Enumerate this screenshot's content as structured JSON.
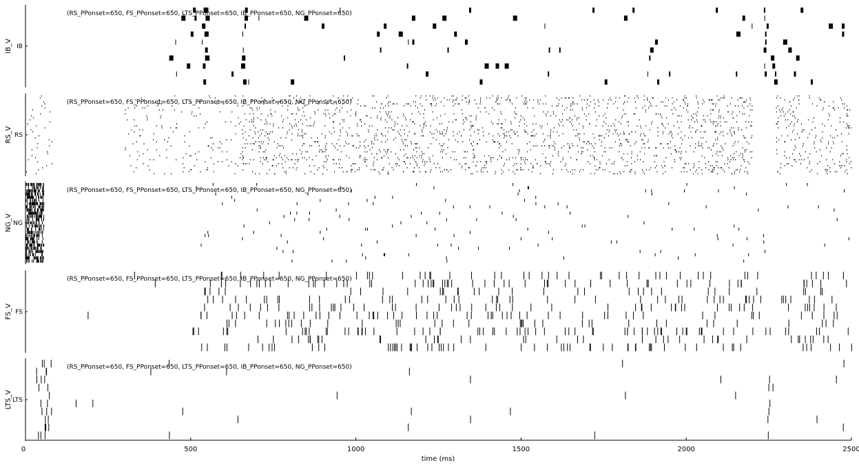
{
  "chart_data": {
    "type": "raster",
    "panel_title": "(RS_PPonset=650, FS_PPonset=650, LTS_PPonset=650, IB_PPonset=650, NG_PPonset=650)",
    "xlabel": "time (ms)",
    "xlim": [
      0,
      2500
    ],
    "xticks": [
      "0",
      "500",
      "1000",
      "1500",
      "2000",
      "2500"
    ],
    "grid": false,
    "panels": [
      {
        "id": "IB",
        "ylabel": "IB_V",
        "ytick": "IB",
        "n_neurons": 10,
        "spike_style": "bursts",
        "activity": [
          {
            "t_start": 390,
            "t_end": 700,
            "rate_hz": 5
          },
          {
            "t_start": 700,
            "t_end": 2500,
            "rate_hz": 3
          }
        ],
        "volley_times": [
          540,
          660,
          2240
        ]
      },
      {
        "id": "RS",
        "ylabel": "RS_V",
        "ytick": "RS",
        "n_neurons": 40,
        "spike_style": "dots",
        "activity": [
          {
            "t_start": 0,
            "t_end": 80,
            "rate_hz": 10
          },
          {
            "t_start": 300,
            "t_end": 650,
            "rate_hz": 12
          },
          {
            "t_start": 650,
            "t_end": 2200,
            "rate_hz": 30
          },
          {
            "t_start": 2270,
            "t_end": 2500,
            "rate_hz": 25
          }
        ]
      },
      {
        "id": "NG",
        "ylabel": "NG_V",
        "ytick": "NG",
        "n_neurons": 25,
        "spike_style": "ticks",
        "activity": [
          {
            "t_start": 0,
            "t_end": 55,
            "rate_hz": 400
          },
          {
            "t_start": 510,
            "t_end": 2500,
            "rate_hz": 3
          }
        ]
      },
      {
        "id": "FS",
        "ylabel": "FS_V",
        "ytick": "FS",
        "n_neurons": 10,
        "spike_style": "ticks",
        "activity": [
          {
            "t_start": 0,
            "t_end": 500,
            "rate_hz": 1
          },
          {
            "t_start": 500,
            "t_end": 2240,
            "rate_hz": 28
          },
          {
            "t_start": 2250,
            "t_end": 2500,
            "rate_hz": 24
          }
        ]
      },
      {
        "id": "LTS",
        "ylabel": "LTS_V",
        "ytick": "LTS",
        "n_neurons": 10,
        "spike_style": "ticks",
        "activity": [
          {
            "t_start": 30,
            "t_end": 80,
            "rate_hz": 40
          },
          {
            "t_start": 80,
            "t_end": 2500,
            "rate_hz": 1
          }
        ],
        "volley_times": [
          2250
        ]
      }
    ]
  }
}
